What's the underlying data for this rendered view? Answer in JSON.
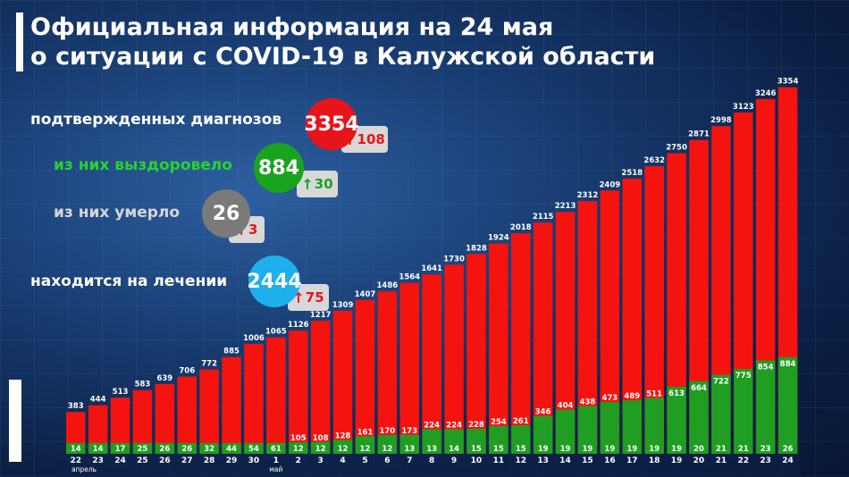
{
  "title_line1": "Официальная информация на 24 мая",
  "title_line2": "о ситуации с COVID-19 в Калужской области",
  "stats": {
    "confirmed": {
      "label": "подтвержденных диагнозов",
      "value": "3354",
      "delta": "108",
      "color": "#e8141c",
      "label_color": "#ffffff",
      "delta_color": "#e8141c"
    },
    "recovered": {
      "label": "из них выздоровело",
      "value": "884",
      "delta": "30",
      "color": "#1aa31e",
      "label_color": "#2ad12f",
      "delta_color": "#1aa31e"
    },
    "died": {
      "label": "из них умерло",
      "value": "26",
      "delta": "3",
      "color": "#7a7a7a",
      "label_color": "#d6d6d6",
      "delta_color": "#e8141c"
    },
    "treatment": {
      "label": "находится на лечении",
      "value": "2444",
      "delta": "75",
      "color": "#1eb0ec",
      "label_color": "#ffffff",
      "delta_color": "#e8141c"
    }
  },
  "chart_data": {
    "type": "bar",
    "categories": [
      "22",
      "23",
      "24",
      "25",
      "26",
      "27",
      "28",
      "29",
      "30",
      "1",
      "2",
      "3",
      "4",
      "5",
      "6",
      "7",
      "8",
      "9",
      "10",
      "11",
      "12",
      "13",
      "14",
      "15",
      "16",
      "17",
      "18",
      "19",
      "20",
      "21",
      "22",
      "23",
      "24"
    ],
    "month_labels": [
      "апрель",
      "май"
    ],
    "series": [
      {
        "values": [
          383,
          444,
          513,
          583,
          639,
          706,
          772,
          885,
          1006,
          1065,
          1126,
          1217,
          1309,
          1407,
          1486,
          1564,
          1641,
          1730,
          1828,
          1924,
          2018,
          2115,
          2213,
          2312,
          2409,
          2518,
          2632,
          2750,
          2871,
          2998,
          3123,
          3246,
          3354
        ],
        "color": "#f5130f"
      },
      {
        "values": [
          14,
          14,
          17,
          25,
          26,
          26,
          32,
          44,
          54,
          61,
          105,
          108,
          128,
          161,
          170,
          173,
          224,
          224,
          228,
          254,
          261,
          346,
          404,
          438,
          473,
          489,
          511,
          613,
          664,
          722,
          775,
          854,
          884
        ],
        "color": "#1f9e22"
      },
      {
        "values": [
          null,
          null,
          null,
          null,
          null,
          null,
          null,
          null,
          null,
          null,
          12,
          12,
          12,
          12,
          12,
          13,
          13,
          14,
          15,
          15,
          15,
          19,
          19,
          19,
          19,
          19,
          19,
          19,
          20,
          21,
          21,
          23,
          26
        ],
        "color": "#1f9e22"
      }
    ],
    "ylim": [
      0,
      3400
    ]
  }
}
